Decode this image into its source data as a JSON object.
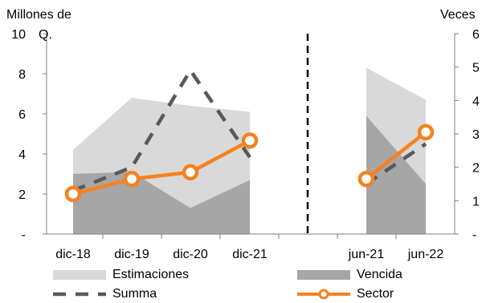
{
  "chart_data": {
    "type": "area",
    "y_left_label": [
      "Millones de",
      "Q."
    ],
    "y_right_label": "Veces",
    "y_left_range": [
      0,
      10
    ],
    "y_right_range": [
      0,
      6
    ],
    "y_left_ticks": [
      "-",
      "2",
      "4",
      "6",
      "8",
      "10"
    ],
    "y_right_ticks": [
      "-",
      "1",
      "2",
      "3",
      "4",
      "5",
      "6"
    ],
    "categories_left": [
      "dic-18",
      "dic-19",
      "dic-20",
      "dic-21"
    ],
    "categories_right": [
      "jun-21",
      "jun-22"
    ],
    "series": [
      {
        "name": "Estimaciones",
        "axis": "left",
        "type": "area",
        "left_values": [
          4.2,
          6.8,
          6.4,
          6.1
        ],
        "right_values": [
          8.3,
          6.7
        ]
      },
      {
        "name": "Vencida",
        "axis": "left",
        "type": "area",
        "left_values": [
          3.0,
          3.1,
          1.3,
          2.7
        ],
        "right_values": [
          5.9,
          2.5
        ]
      },
      {
        "name": "Summa",
        "axis": "right",
        "type": "line",
        "style": "dashed",
        "left_values": [
          1.3,
          2.0,
          4.9,
          2.3
        ],
        "right_values": [
          1.5,
          2.7
        ]
      },
      {
        "name": "Sector",
        "axis": "right",
        "type": "line",
        "style": "solid-markers",
        "left_values": [
          1.2,
          1.65,
          1.85,
          2.8
        ],
        "right_values": [
          1.65,
          3.05
        ]
      }
    ],
    "colors": {
      "Estimaciones": "#d9d9d9",
      "Vencida": "#a6a6a6",
      "Summa": "#595959",
      "Sector": "#f58220"
    },
    "separator": "dashed-vertical",
    "legend_position": "bottom",
    "grid": false
  }
}
